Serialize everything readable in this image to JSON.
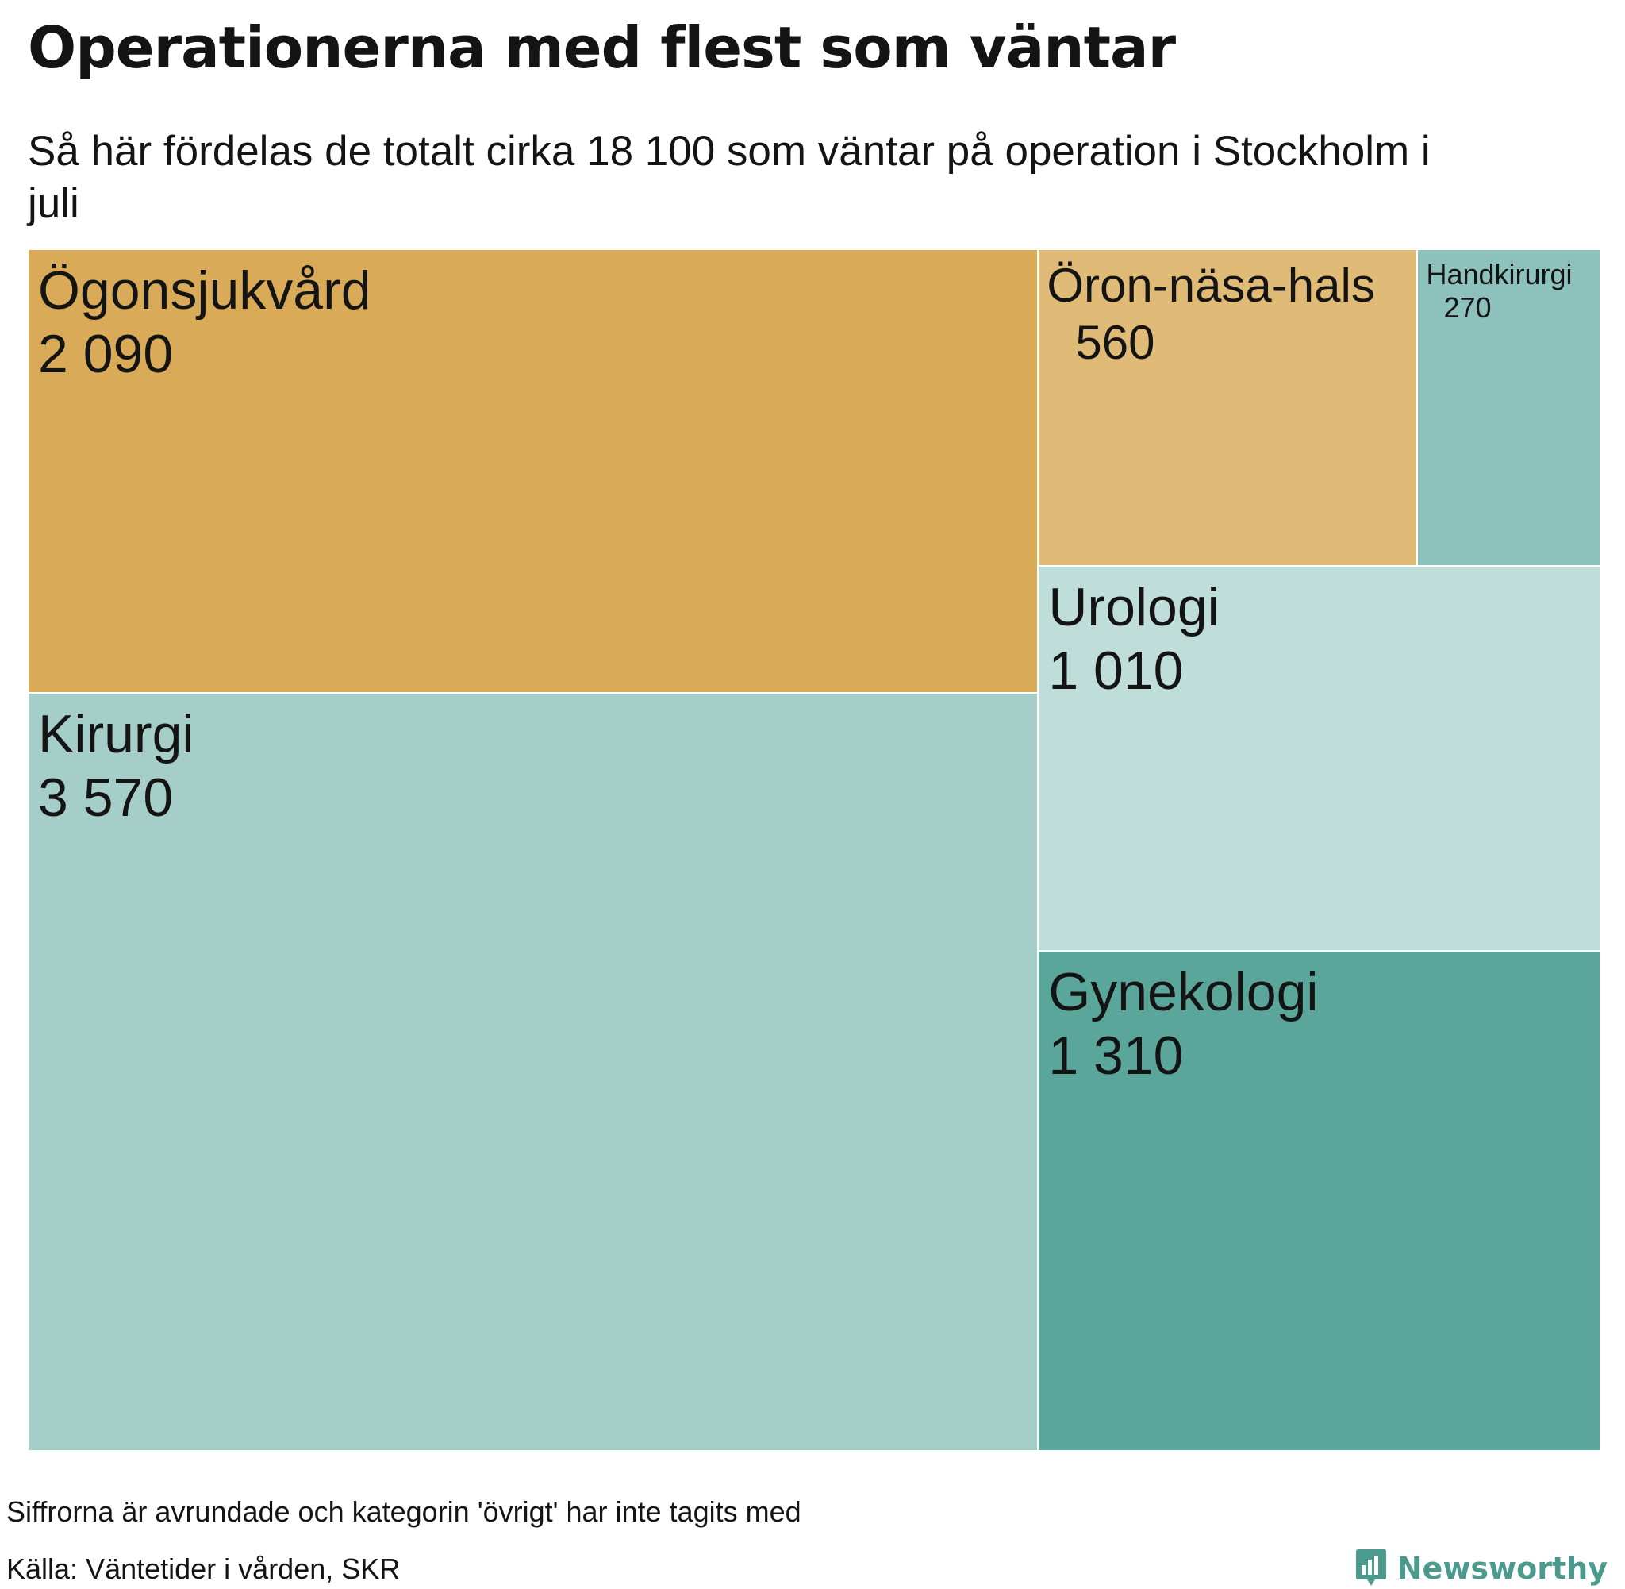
{
  "title": "Operationerna med flest som väntar",
  "subtitle": "Så här fördelas de totalt cirka 18 100 som väntar på operation i Stockholm i juli",
  "footer": {
    "note": "Siffrorna är avrundade och kategorin 'övrigt' har inte tagits med",
    "source": "Källa: Väntetider i vården, SKR",
    "brand": "Newsworthy",
    "brand_icon": "newsworthy-chart-bubble-icon",
    "brand_color": "#4a9a8d"
  },
  "chart_data": {
    "type": "treemap",
    "items": [
      {
        "name": "Kirurgi",
        "value": 3570,
        "display": "3 570",
        "color": "#a6cec9"
      },
      {
        "name": "Ögonsjukvård",
        "value": 2090,
        "display": "2 090",
        "color": "#d9ab58"
      },
      {
        "name": "Gynekologi",
        "value": 1310,
        "display": "1 310",
        "color": "#5ba69b"
      },
      {
        "name": "Urologi",
        "value": 1010,
        "display": "1 010",
        "color": "#bfdeda"
      },
      {
        "name": "Öron-näsa-hals",
        "value": 560,
        "display": "560",
        "color": "#e0bb77"
      },
      {
        "name": "Handkirurgi",
        "value": 270,
        "display": "270",
        "color": "#8dc1bb"
      }
    ]
  }
}
